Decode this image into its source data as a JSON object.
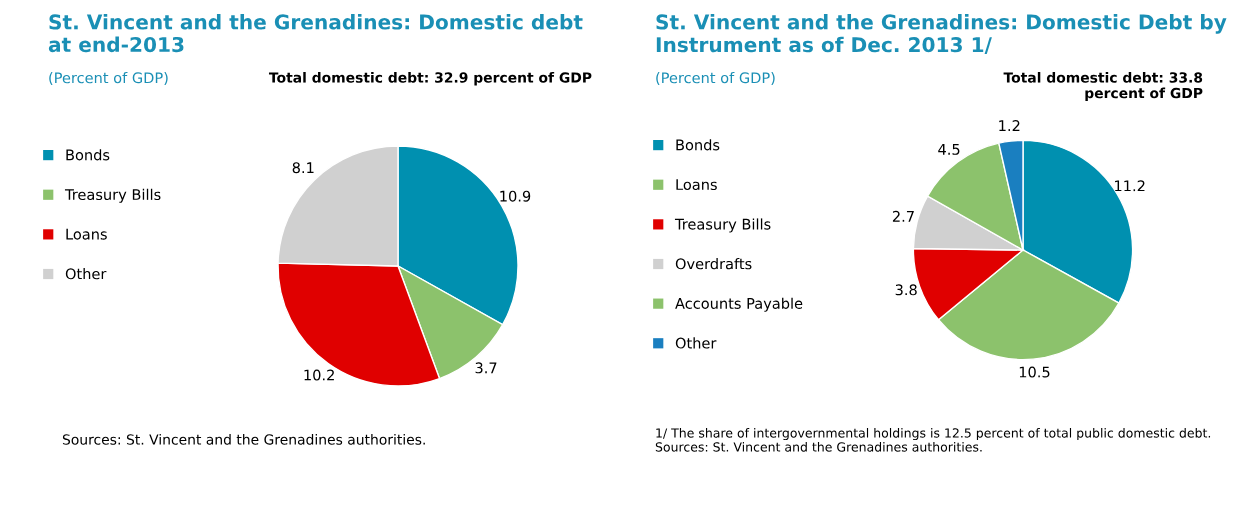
{
  "chart_data": [
    {
      "type": "pie",
      "title": "St. Vincent and the Grenadines: Domestic debt\nat end-2013",
      "subtitle": "(Percent of GDP)",
      "categories": [
        "Bonds",
        "Treasury Bills",
        "Loans",
        "Other"
      ],
      "values": [
        10.9,
        3.7,
        10.2,
        8.1
      ],
      "colors": [
        "#0090b0",
        "#8cc26c",
        "#e00000",
        "#d0d0d0"
      ],
      "data_labels": true,
      "legend": "left",
      "annotations": [
        "Total domestic debt: 32.9 percent of GDP",
        "Sources: St. Vincent and the Grenadines authorities."
      ]
    },
    {
      "type": "pie",
      "title": "St. Vincent and the Grenadines: Domestic Debt by\nInstrument as of Dec. 2013 1/",
      "subtitle": "(Percent of GDP)",
      "categories": [
        "Bonds",
        "Loans",
        "Treasury Bills",
        "Overdrafts",
        "Accounts Payable",
        "Other"
      ],
      "values": [
        11.2,
        10.5,
        3.8,
        2.7,
        4.5,
        1.2
      ],
      "colors": [
        "#0090b0",
        "#8cc26c",
        "#e00000",
        "#d0d0d0",
        "#8cc26c",
        "#1a7fc0"
      ],
      "data_labels": true,
      "legend": "left",
      "annotations": [
        "Total domestic debt: 33.8\npercent of GDP",
        "1/ The share of intergovernmental holdings is 12.5 percent of total public domestic debt.\nSources: St. Vincent and the Grenadines authorities."
      ]
    }
  ]
}
